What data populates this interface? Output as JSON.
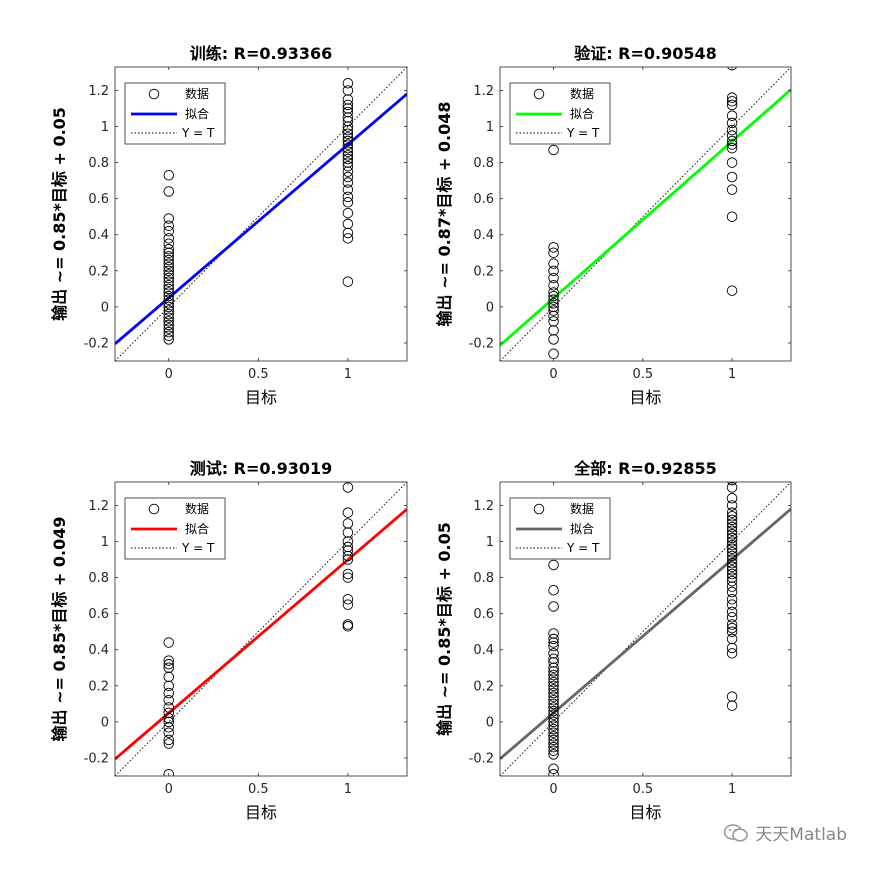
{
  "watermark": "天天Matlab",
  "legend_labels": {
    "data": "数据",
    "fit": "拟合",
    "identity": "Y = T"
  },
  "chart_data": [
    {
      "type": "scatter",
      "title": "训练: R=0.93366",
      "xlabel": "目标",
      "ylabel": "输出 ~= 0.85*目标 + 0.05",
      "xlim": [
        -0.3,
        1.33
      ],
      "ylim": [
        -0.3,
        1.33
      ],
      "xticks": [
        0,
        0.5,
        1
      ],
      "xtick_labels": [
        "0",
        "0.5",
        "1"
      ],
      "yticks": [
        -0.2,
        0,
        0.2,
        0.4,
        0.6,
        0.8,
        1,
        1.2
      ],
      "ytick_labels": [
        "-0.2",
        "0",
        "0.2",
        "0.4",
        "0.6",
        "0.8",
        "1",
        "1.2"
      ],
      "fit": {
        "slope": 0.85,
        "intercept": 0.05,
        "color": "#0000ff"
      },
      "legend_position": "top-left",
      "grid": false,
      "series": [
        {
          "x": 0,
          "y": [
            0.73,
            0.64,
            0.49,
            0.45,
            0.42,
            0.38,
            0.35,
            0.32,
            0.3,
            0.28,
            0.26,
            0.24,
            0.22,
            0.2,
            0.18,
            0.16,
            0.14,
            0.12,
            0.1,
            0.08,
            0.06,
            0.04,
            0.02,
            0,
            -0.02,
            -0.04,
            -0.06,
            -0.08,
            -0.1,
            -0.12,
            -0.14,
            -0.16,
            -0.18
          ]
        },
        {
          "x": 1,
          "y": [
            1.24,
            1.2,
            1.15,
            1.12,
            1.1,
            1.08,
            1.05,
            1.03,
            1.0,
            0.98,
            0.96,
            0.94,
            0.92,
            0.9,
            0.88,
            0.86,
            0.84,
            0.82,
            0.8,
            0.78,
            0.75,
            0.72,
            0.69,
            0.65,
            0.61,
            0.58,
            0.52,
            0.46,
            0.41,
            0.38,
            0.14
          ]
        }
      ]
    },
    {
      "type": "scatter",
      "title": "验证: R=0.90548",
      "xlabel": "目标",
      "ylabel": "输出 ~= 0.87*目标 + 0.048",
      "xlim": [
        -0.3,
        1.33
      ],
      "ylim": [
        -0.3,
        1.33
      ],
      "xticks": [
        0,
        0.5,
        1
      ],
      "xtick_labels": [
        "0",
        "0.5",
        "1"
      ],
      "yticks": [
        -0.2,
        0,
        0.2,
        0.4,
        0.6,
        0.8,
        1,
        1.2
      ],
      "ytick_labels": [
        "-0.2",
        "0",
        "0.2",
        "0.4",
        "0.6",
        "0.8",
        "1",
        "1.2"
      ],
      "fit": {
        "slope": 0.87,
        "intercept": 0.048,
        "color": "#00ff00"
      },
      "legend_position": "top-left",
      "grid": false,
      "series": [
        {
          "x": 0,
          "y": [
            0.87,
            0.33,
            0.3,
            0.24,
            0.2,
            0.16,
            0.12,
            0.08,
            0.06,
            0.04,
            0.02,
            0,
            -0.02,
            -0.05,
            -0.08,
            -0.13,
            -0.18,
            -0.26
          ]
        },
        {
          "x": 1,
          "y": [
            1.34,
            1.16,
            1.14,
            1.12,
            1.06,
            1.02,
            0.98,
            0.95,
            0.92,
            0.9,
            0.88,
            0.8,
            0.72,
            0.65,
            0.5,
            0.09
          ]
        }
      ]
    },
    {
      "type": "scatter",
      "title": "测试: R=0.93019",
      "xlabel": "目标",
      "ylabel": "输出 ~= 0.85*目标 + 0.049",
      "xlim": [
        -0.3,
        1.33
      ],
      "ylim": [
        -0.3,
        1.33
      ],
      "xticks": [
        0,
        0.5,
        1
      ],
      "xtick_labels": [
        "0",
        "0.5",
        "1"
      ],
      "yticks": [
        -0.2,
        0,
        0.2,
        0.4,
        0.6,
        0.8,
        1,
        1.2
      ],
      "ytick_labels": [
        "-0.2",
        "0",
        "0.2",
        "0.4",
        "0.6",
        "0.8",
        "1",
        "1.2"
      ],
      "fit": {
        "slope": 0.85,
        "intercept": 0.049,
        "color": "#ff0000"
      },
      "legend_position": "top-left",
      "grid": false,
      "series": [
        {
          "x": 0,
          "y": [
            0.44,
            0.34,
            0.32,
            0.3,
            0.25,
            0.2,
            0.16,
            0.12,
            0.08,
            0.05,
            0.02,
            0,
            -0.03,
            -0.06,
            -0.1,
            -0.12,
            -0.29
          ]
        },
        {
          "x": 1,
          "y": [
            1.3,
            1.16,
            1.1,
            1.05,
            1.0,
            0.97,
            0.95,
            0.92,
            0.9,
            0.82,
            0.8,
            0.68,
            0.65,
            0.54,
            0.53
          ]
        }
      ]
    },
    {
      "type": "scatter",
      "title": "全部: R=0.92855",
      "xlabel": "目标",
      "ylabel": "输出 ~= 0.85*目标 + 0.05",
      "xlim": [
        -0.3,
        1.33
      ],
      "ylim": [
        -0.3,
        1.33
      ],
      "xticks": [
        0,
        0.5,
        1
      ],
      "xtick_labels": [
        "0",
        "0.5",
        "1"
      ],
      "yticks": [
        -0.2,
        0,
        0.2,
        0.4,
        0.6,
        0.8,
        1,
        1.2
      ],
      "ytick_labels": [
        "-0.2",
        "0",
        "0.2",
        "0.4",
        "0.6",
        "0.8",
        "1",
        "1.2"
      ],
      "fit": {
        "slope": 0.85,
        "intercept": 0.05,
        "color": "#666666"
      },
      "legend_position": "top-left",
      "grid": false,
      "series": [
        {
          "x": 0,
          "y": [
            0.87,
            0.73,
            0.64,
            0.49,
            0.46,
            0.44,
            0.42,
            0.38,
            0.35,
            0.33,
            0.3,
            0.28,
            0.26,
            0.24,
            0.22,
            0.2,
            0.18,
            0.16,
            0.14,
            0.12,
            0.1,
            0.08,
            0.06,
            0.04,
            0.02,
            0,
            -0.02,
            -0.04,
            -0.06,
            -0.08,
            -0.1,
            -0.12,
            -0.14,
            -0.16,
            -0.18,
            -0.26,
            -0.29
          ]
        },
        {
          "x": 1,
          "y": [
            1.34,
            1.3,
            1.24,
            1.2,
            1.16,
            1.14,
            1.12,
            1.1,
            1.08,
            1.06,
            1.04,
            1.02,
            1.0,
            0.98,
            0.96,
            0.94,
            0.92,
            0.9,
            0.88,
            0.86,
            0.84,
            0.82,
            0.8,
            0.78,
            0.75,
            0.72,
            0.68,
            0.65,
            0.61,
            0.58,
            0.54,
            0.52,
            0.5,
            0.46,
            0.41,
            0.38,
            0.14,
            0.09
          ]
        }
      ]
    }
  ]
}
